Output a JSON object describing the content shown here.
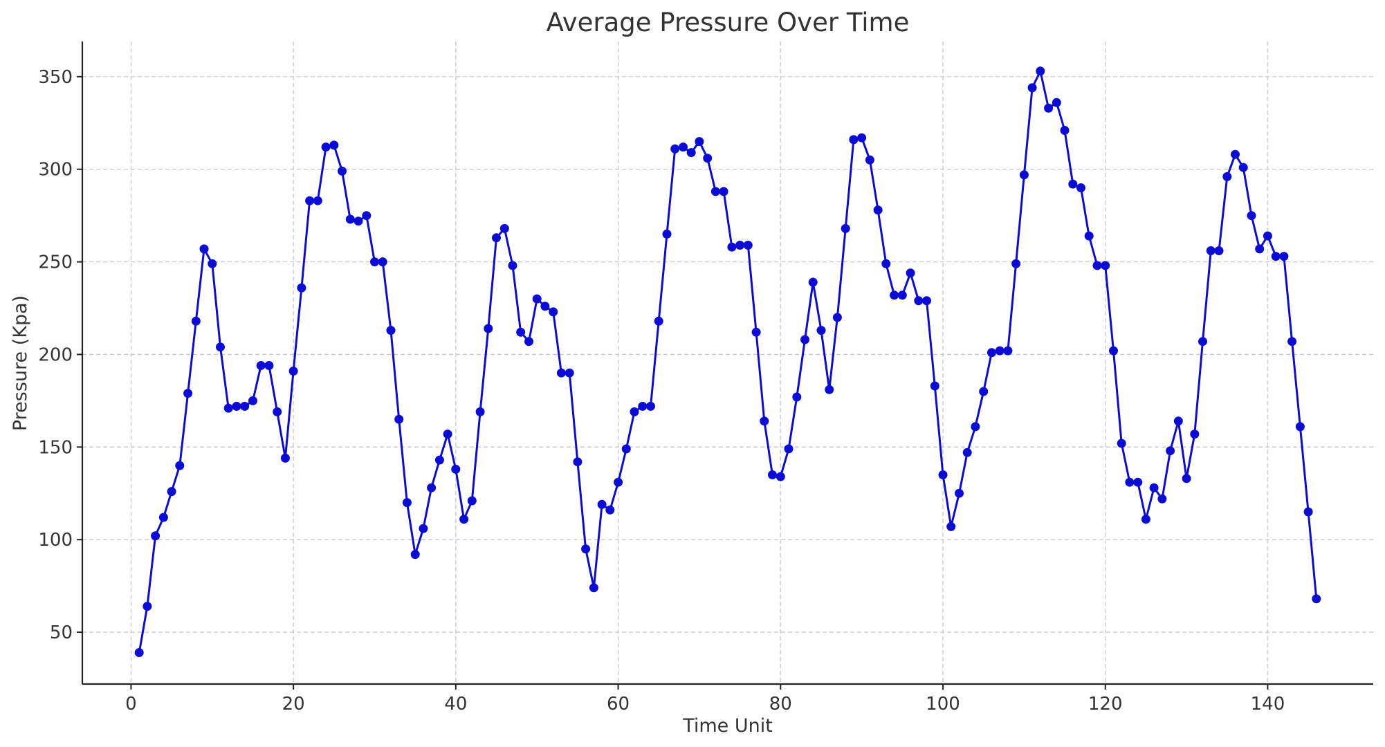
{
  "chart_data": {
    "type": "line",
    "title": "Average Pressure Over Time",
    "xlabel": "Time Unit",
    "ylabel": "Pressure (Kpa)",
    "xlim": [
      -6,
      153
    ],
    "ylim": [
      22,
      369
    ],
    "xticks": [
      0,
      20,
      40,
      60,
      80,
      100,
      120,
      140
    ],
    "yticks": [
      50,
      100,
      150,
      200,
      250,
      300,
      350
    ],
    "grid": true,
    "color": "#0b0bd6",
    "series": [
      {
        "x": [
          1,
          2,
          3,
          4,
          5,
          6,
          7,
          8,
          9,
          10,
          11,
          12,
          13,
          14,
          15,
          16,
          17,
          18,
          19,
          20,
          21,
          22,
          23,
          24,
          25,
          26,
          27,
          28,
          29,
          30,
          31,
          32,
          33,
          34,
          35,
          36,
          37,
          38,
          39,
          40,
          41,
          42,
          43,
          44,
          45,
          46,
          47,
          48,
          49,
          50,
          51,
          52,
          53,
          54,
          55,
          56,
          57,
          58,
          59,
          60,
          61,
          62,
          63,
          64,
          65,
          66,
          67,
          68,
          69,
          70,
          71,
          72,
          73,
          74,
          75,
          76,
          77,
          78,
          79,
          80,
          81,
          82,
          83,
          84,
          85,
          86,
          87,
          88,
          89,
          90,
          91,
          92,
          93,
          94,
          95,
          96,
          97,
          98,
          99,
          100,
          101,
          102,
          103,
          104,
          105,
          106,
          107,
          108,
          109,
          110,
          111,
          112,
          113,
          114,
          115,
          116,
          117,
          118,
          119,
          120,
          121,
          122,
          123,
          124,
          125,
          126,
          127,
          128,
          129,
          130,
          131,
          132,
          133,
          134,
          135,
          136,
          137,
          138,
          139,
          140,
          141,
          142,
          143,
          144,
          145,
          146
        ],
        "y": [
          39,
          64,
          102,
          112,
          126,
          140,
          179,
          218,
          257,
          249,
          204,
          171,
          172,
          172,
          175,
          194,
          194,
          169,
          144,
          191,
          236,
          283,
          283,
          312,
          313,
          299,
          273,
          272,
          275,
          250,
          250,
          213,
          165,
          120,
          92,
          106,
          128,
          143,
          157,
          138,
          111,
          121,
          169,
          214,
          263,
          268,
          248,
          212,
          207,
          230,
          226,
          223,
          190,
          190,
          142,
          95,
          74,
          119,
          116,
          131,
          149,
          169,
          172,
          172,
          218,
          265,
          311,
          312,
          309,
          315,
          306,
          288,
          288,
          258,
          259,
          259,
          212,
          164,
          135,
          134,
          149,
          177,
          208,
          239,
          213,
          181,
          220,
          268,
          316,
          317,
          305,
          278,
          249,
          232,
          232,
          244,
          229,
          229,
          183,
          135,
          107,
          125,
          147,
          161,
          180,
          201,
          202,
          202,
          249,
          297,
          344,
          353,
          333,
          336,
          321,
          292,
          290,
          264,
          248,
          248,
          202,
          152,
          131,
          131,
          111,
          128,
          122,
          148,
          164,
          133,
          157,
          207,
          256,
          256,
          296,
          308,
          301,
          275,
          257,
          264,
          253,
          253,
          207,
          161,
          115,
          68
        ]
      }
    ]
  }
}
